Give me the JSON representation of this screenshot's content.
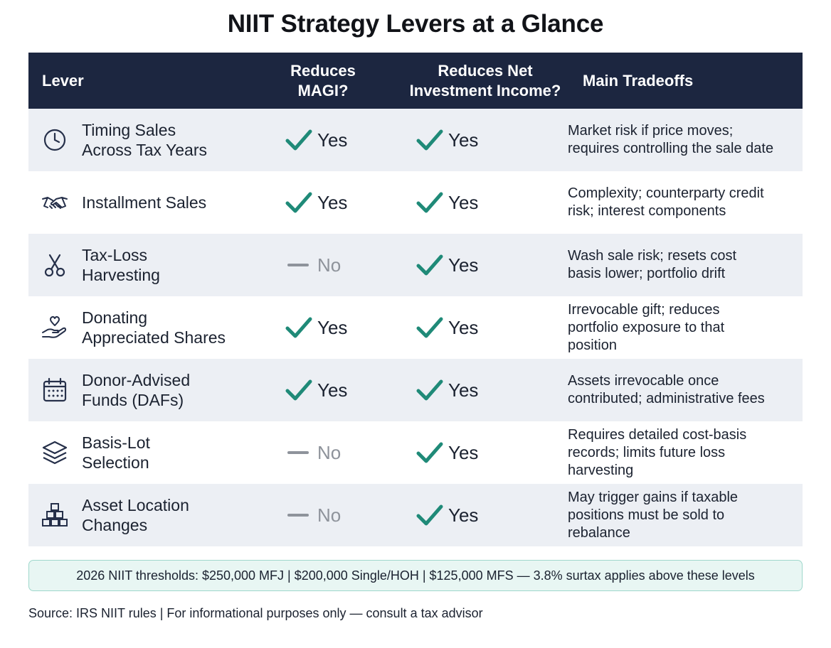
{
  "title": "NIIT Strategy Levers at a Glance",
  "colors": {
    "header_bg": "#1c2640",
    "check": "#1f8a78",
    "dash": "#8e939b",
    "note_bg": "#e8f6f3",
    "note_border": "#9fd8cc",
    "row_shade": "#eceff4"
  },
  "table": {
    "headers": {
      "lever": "Lever",
      "magi": [
        "Reduces",
        "MAGI?"
      ],
      "nii": [
        "Reduces Net",
        "Investment Income?"
      ],
      "tradeoffs": "Main Tradeoffs"
    },
    "rows": [
      {
        "icon": "clock-icon",
        "lever": [
          "Timing Sales",
          "Across Tax Years"
        ],
        "magi": "Yes",
        "nii": "Yes",
        "tradeoffs": [
          "Market risk if price moves;",
          "requires controlling the sale date"
        ]
      },
      {
        "icon": "handshake-icon",
        "lever": [
          "Installment Sales"
        ],
        "magi": "Yes",
        "nii": "Yes",
        "tradeoffs": [
          "Complexity; counterparty credit",
          "risk; interest components"
        ]
      },
      {
        "icon": "scissors-icon",
        "lever": [
          "Tax-Loss",
          "Harvesting"
        ],
        "magi": "No",
        "nii": "Yes",
        "tradeoffs": [
          "Wash sale risk; resets cost",
          "basis lower; portfolio drift"
        ]
      },
      {
        "icon": "heart-hand-icon",
        "lever": [
          "Donating",
          "Appreciated Shares"
        ],
        "magi": "Yes",
        "nii": "Yes",
        "tradeoffs": [
          "Irrevocable gift; reduces",
          "portfolio exposure to that",
          "position"
        ]
      },
      {
        "icon": "calendar-icon",
        "lever": [
          "Donor-Advised",
          "Funds (DAFs)"
        ],
        "magi": "Yes",
        "nii": "Yes",
        "tradeoffs": [
          "Assets irrevocable once",
          "contributed; administrative fees"
        ]
      },
      {
        "icon": "layers-icon",
        "lever": [
          "Basis-Lot",
          "Selection"
        ],
        "magi": "No",
        "nii": "Yes",
        "tradeoffs": [
          "Requires detailed cost-basis",
          "records; limits future loss",
          "harvesting"
        ]
      },
      {
        "icon": "boxes-icon",
        "lever": [
          "Asset Location",
          "Changes"
        ],
        "magi": "No",
        "nii": "Yes",
        "tradeoffs": [
          "May trigger gains if taxable",
          "positions must be sold to",
          "rebalance"
        ]
      }
    ]
  },
  "note": "2026 NIIT thresholds: $250,000 MFJ | $200,000 Single/HOH | $125,000 MFS — 3.8% surtax applies above these levels",
  "source": "Source: IRS NIIT rules | For informational purposes only — consult a tax advisor"
}
